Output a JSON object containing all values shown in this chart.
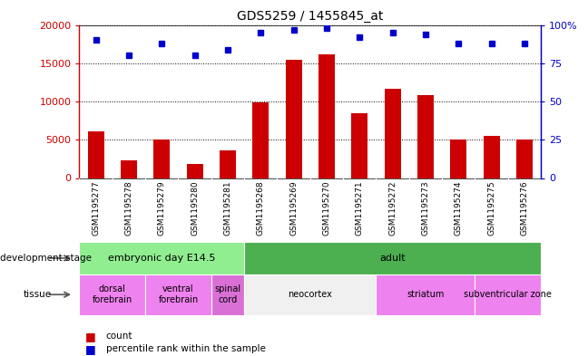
{
  "title": "GDS5259 / 1455845_at",
  "samples": [
    "GSM1195277",
    "GSM1195278",
    "GSM1195279",
    "GSM1195280",
    "GSM1195281",
    "GSM1195268",
    "GSM1195269",
    "GSM1195270",
    "GSM1195271",
    "GSM1195272",
    "GSM1195273",
    "GSM1195274",
    "GSM1195275",
    "GSM1195276"
  ],
  "counts": [
    6100,
    2300,
    5000,
    1800,
    3600,
    9900,
    15400,
    16200,
    8500,
    11600,
    10800,
    5000,
    5500,
    5000
  ],
  "percentiles": [
    90,
    80,
    88,
    80,
    84,
    95,
    97,
    98,
    92,
    95,
    94,
    88,
    88,
    88
  ],
  "ylim_left": [
    0,
    20000
  ],
  "ylim_right": [
    0,
    100
  ],
  "yticks_left": [
    0,
    5000,
    10000,
    15000,
    20000
  ],
  "yticks_right": [
    0,
    25,
    50,
    75,
    100
  ],
  "bar_color": "#cc0000",
  "dot_color": "#0000cc",
  "dev_stages": [
    {
      "label": "embryonic day E14.5",
      "start": 0,
      "end": 5,
      "color": "#90ee90"
    },
    {
      "label": "adult",
      "start": 5,
      "end": 14,
      "color": "#4caf50"
    }
  ],
  "tissues": [
    {
      "label": "dorsal\nforebrain",
      "start": 0,
      "end": 2,
      "color": "#ee82ee"
    },
    {
      "label": "ventral\nforebrain",
      "start": 2,
      "end": 4,
      "color": "#ee82ee"
    },
    {
      "label": "spinal\ncord",
      "start": 4,
      "end": 5,
      "color": "#da70d6"
    },
    {
      "label": "neocortex",
      "start": 5,
      "end": 9,
      "color": "#f0f0f0"
    },
    {
      "label": "striatum",
      "start": 9,
      "end": 12,
      "color": "#ee82ee"
    },
    {
      "label": "subventricular zone",
      "start": 12,
      "end": 14,
      "color": "#ee82ee"
    }
  ],
  "xtick_bg": "#d3d3d3",
  "plot_bg": "#ffffff",
  "legend_items": [
    {
      "color": "#cc0000",
      "label": "count"
    },
    {
      "color": "#0000cc",
      "label": "percentile rank within the sample"
    }
  ]
}
